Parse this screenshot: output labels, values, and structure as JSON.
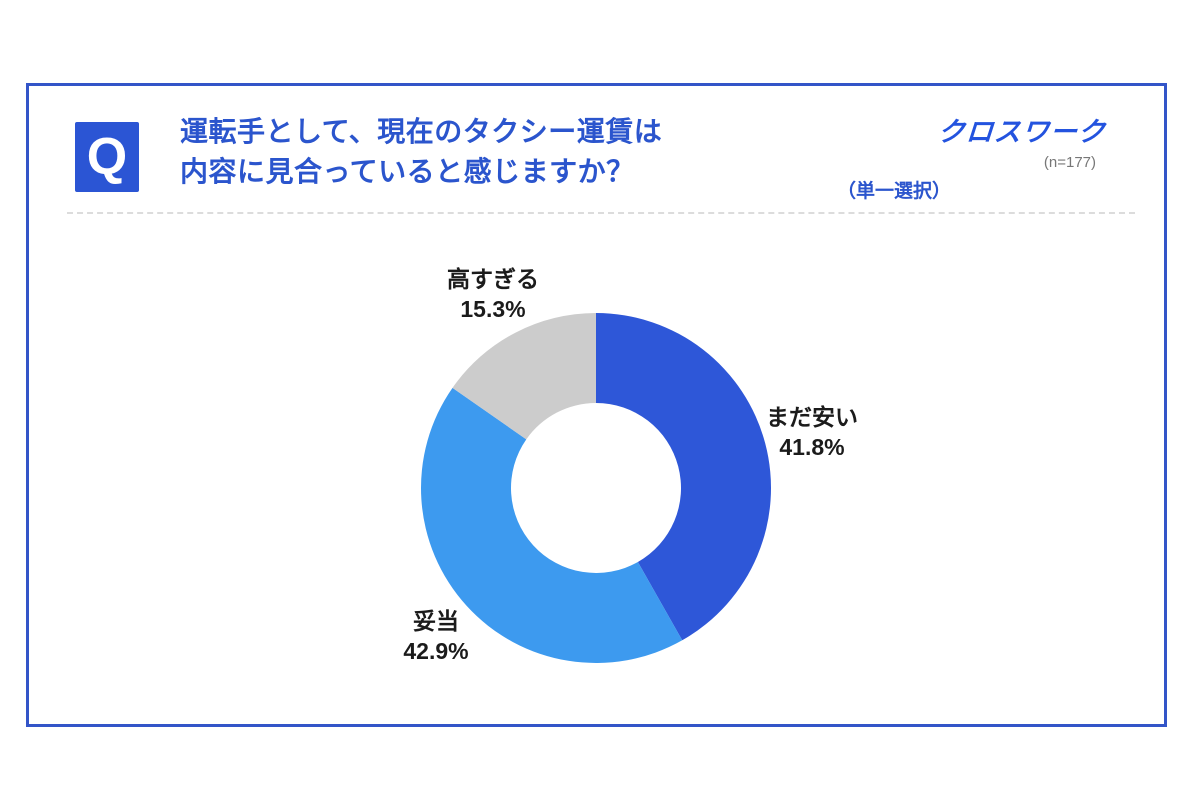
{
  "card": {
    "q_badge_letter": "Q",
    "title_line1": "運転手として、現在のタクシー運賃は",
    "title_line2": "内容に見合っていると感じますか？",
    "brand_logo": "クロスワーク",
    "sample_size": "(n=177)",
    "selection_type": "（単一選択）"
  },
  "chart_data": {
    "type": "pie",
    "subtype": "donut",
    "title": "運転手として、現在のタクシー運賃は内容に見合っていると感じますか？",
    "sample_note": "(n=177)",
    "selection_note": "（単一選択）",
    "categories": [
      "まだ安い",
      "妥当",
      "高すぎる"
    ],
    "values": [
      41.8,
      42.9,
      15.3
    ],
    "unit": "%",
    "start_angle_deg": 0,
    "direction": "clockwise",
    "legend_position": "outside-labels",
    "segments": [
      {
        "label": "まだ安い",
        "value": 41.8,
        "display": "41.8%",
        "color": "#2E57D8"
      },
      {
        "label": "妥当",
        "value": 42.9,
        "display": "42.9%",
        "color": "#3D9AEF"
      },
      {
        "label": "高すぎる",
        "value": 15.3,
        "display": "15.3%",
        "color": "#CCCCCC"
      }
    ],
    "colors": {
      "accent_blue": "#2B55CD",
      "brand_blue": "#2353DF",
      "card_border_blue": "#3355C8",
      "label_text": "#1B1B1B",
      "divider_gray": "#DCDCDC",
      "note_gray": "#777777"
    }
  }
}
